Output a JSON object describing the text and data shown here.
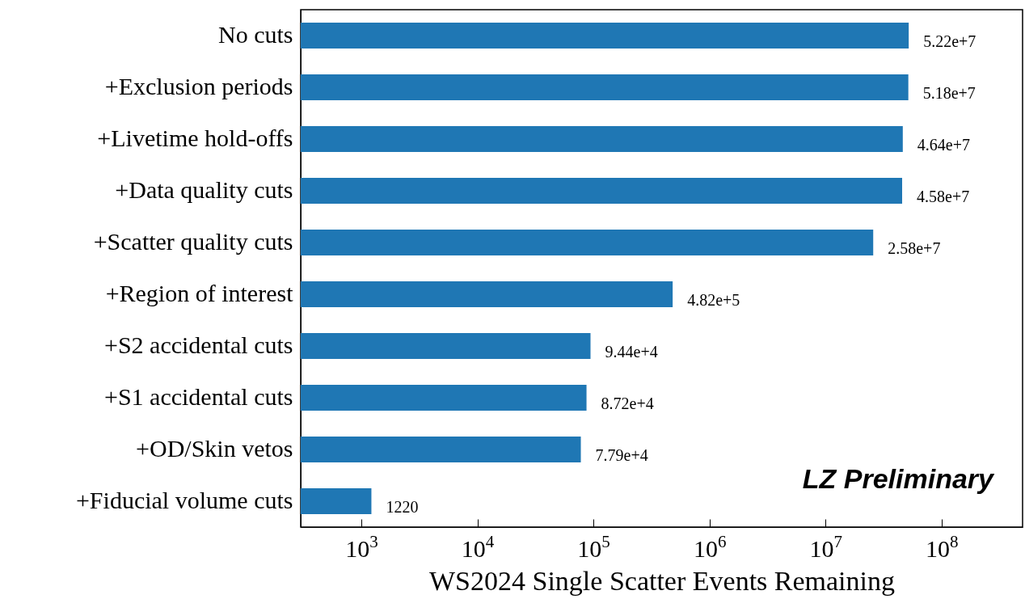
{
  "chart_data": {
    "type": "bar",
    "orientation": "horizontal",
    "log": "x",
    "xlabel": "WS2024 Single Scatter Events Remaining",
    "categories": [
      "No cuts",
      "+Exclusion periods",
      "+Livetime hold-offs",
      "+Data quality cuts",
      "+Scatter quality cuts",
      "+Region of interest",
      "+S2 accidental cuts",
      "+S1 accidental cuts",
      "+OD/Skin vetos",
      "+Fiducial volume cuts"
    ],
    "values": [
      52200000,
      51800000,
      46400000,
      45800000,
      25800000,
      482000,
      94400,
      87200,
      77900,
      1220
    ],
    "value_labels": [
      "5.22e+7",
      "5.18e+7",
      "4.64e+7",
      "4.58e+7",
      "2.58e+7",
      "4.82e+5",
      "9.44e+4",
      "8.72e+4",
      "7.79e+4",
      "1220"
    ],
    "color": "#1f77b4",
    "xlim": [
      300,
      500000000
    ],
    "xticks": [
      {
        "value": 1000,
        "label": "10$^{3}$"
      },
      {
        "value": 10000,
        "label": "10$^{4}$"
      },
      {
        "value": 100000,
        "label": "10$^{5}$"
      },
      {
        "value": 1000000,
        "label": "10$^{6}$"
      },
      {
        "value": 10000000,
        "label": "10$^{7}$"
      },
      {
        "value": 100000000,
        "label": "10$^{8}$"
      }
    ],
    "annotations": [
      "LZ Preliminary"
    ]
  }
}
